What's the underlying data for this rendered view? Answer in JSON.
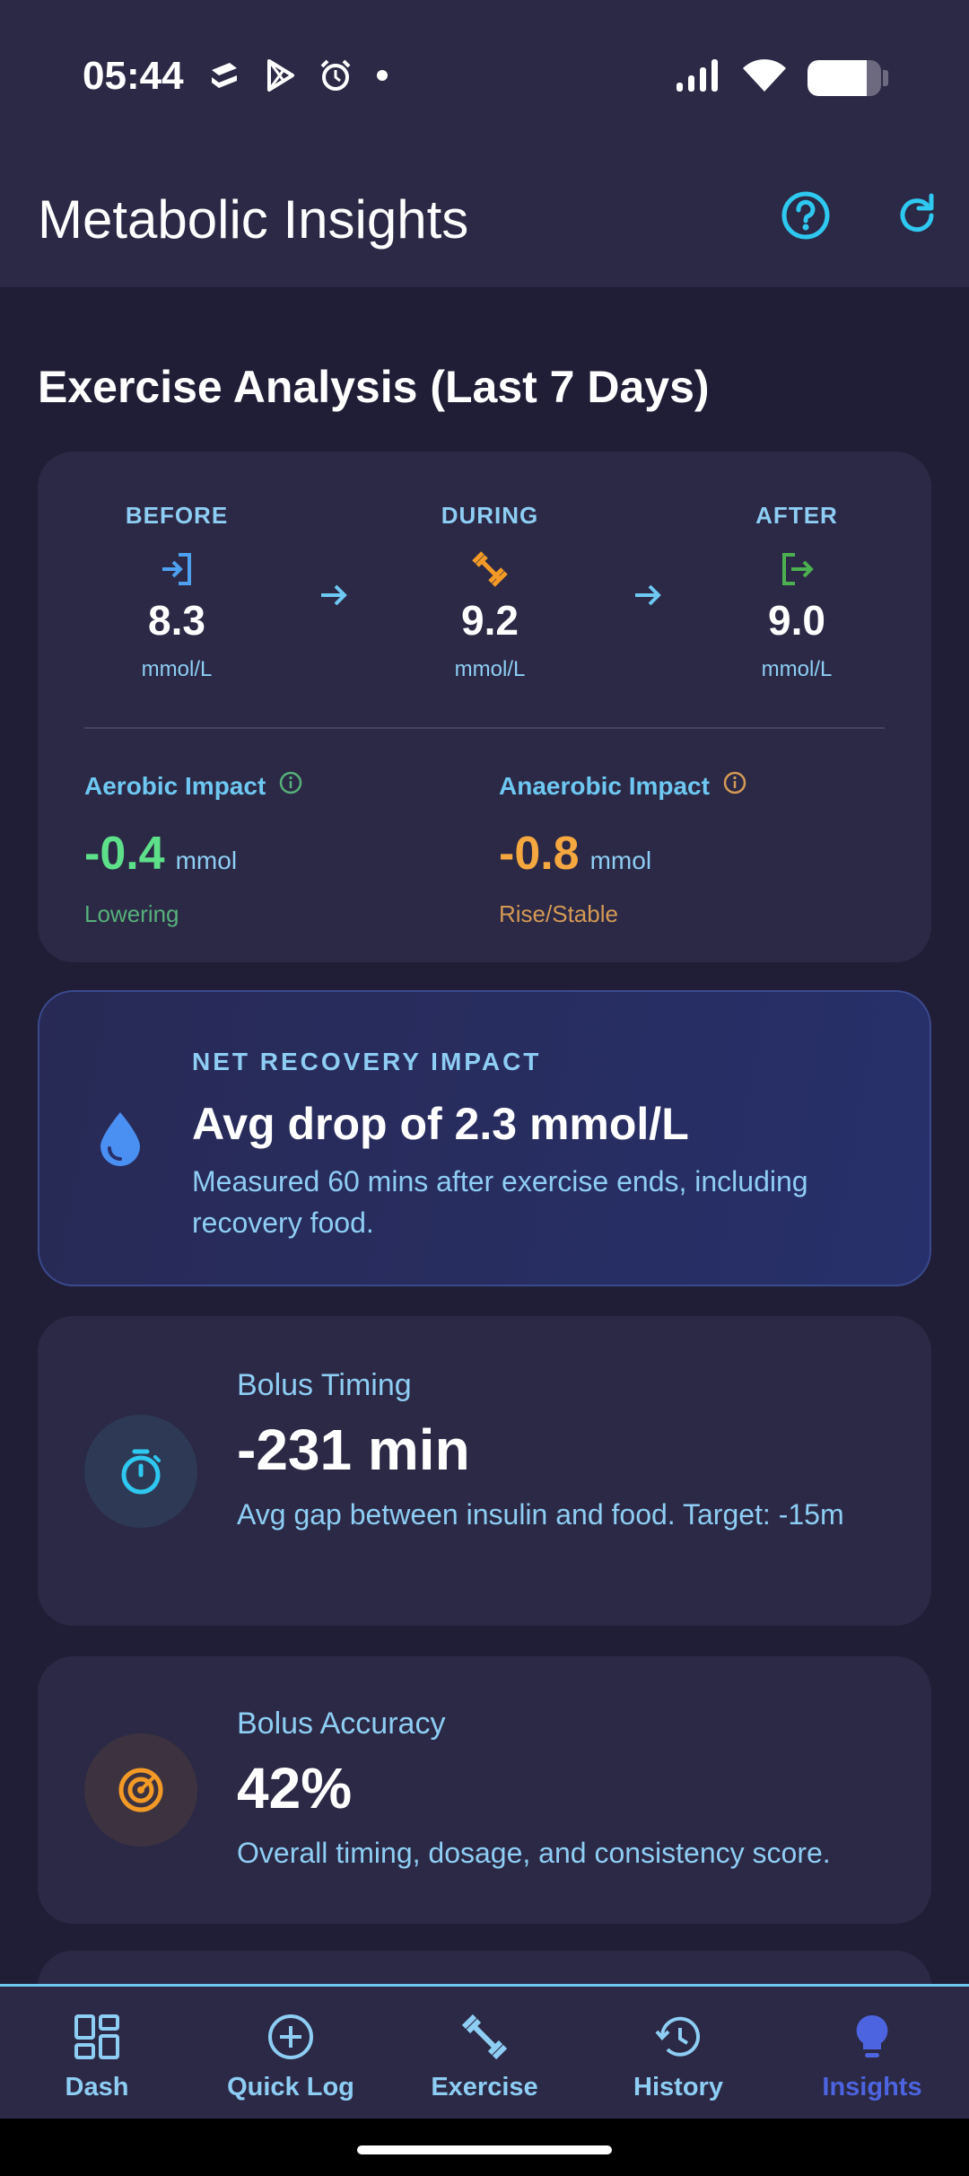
{
  "status_bar": {
    "time": "05:44",
    "icons": [
      "layers-icon",
      "play-store-icon",
      "alarm-icon",
      "dot-icon",
      "signal-icon",
      "wifi-icon",
      "battery-icon"
    ]
  },
  "app_bar": {
    "title": "Metabolic Insights",
    "actions": [
      "help-icon",
      "refresh-icon"
    ]
  },
  "exercise_analysis": {
    "title": "Exercise Analysis (Last 7 Days)",
    "phases": [
      {
        "label": "BEFORE",
        "icon": "login-icon",
        "color": "#4ea0f0",
        "value": "8.3",
        "unit": "mmol/L"
      },
      {
        "label": "DURING",
        "icon": "dumbbell-icon",
        "color": "#f39a26",
        "value": "9.2",
        "unit": "mmol/L"
      },
      {
        "label": "AFTER",
        "icon": "logout-icon",
        "color": "#4caf50",
        "value": "9.0",
        "unit": "mmol/L"
      }
    ],
    "aerobic": {
      "label": "Aerobic Impact",
      "value": "-0.4",
      "unit": "mmol",
      "status": "Lowering",
      "color": "#5ee08a",
      "status_color": "#56b07a"
    },
    "anaerobic": {
      "label": "Anaerobic Impact",
      "value": "-0.8",
      "unit": "mmol",
      "status": "Rise/Stable",
      "color": "#f5a740",
      "status_color": "#d59a55"
    }
  },
  "net_recovery": {
    "title": "NET RECOVERY IMPACT",
    "headline": "Avg drop of 2.3 mmol/L",
    "description": "Measured 60 mins after exercise ends, including recovery food."
  },
  "bolus_timing": {
    "title": "Bolus Timing",
    "value": "-231 min",
    "description": "Avg gap between insulin and food. Target: -15m"
  },
  "bolus_accuracy": {
    "title": "Bolus Accuracy",
    "value": "42%",
    "description": "Overall timing, dosage, and consistency score."
  },
  "bottom_nav": {
    "items": [
      {
        "label": "Dash",
        "icon": "dashboard-icon"
      },
      {
        "label": "Quick Log",
        "icon": "add-circle-icon"
      },
      {
        "label": "Exercise",
        "icon": "dumbbell-icon"
      },
      {
        "label": "History",
        "icon": "history-icon"
      },
      {
        "label": "Insights",
        "icon": "lightbulb-icon"
      }
    ],
    "active": "Insights"
  },
  "colors": {
    "background": "#201e36",
    "card": "#2b2945",
    "accent": "#8ecdf4",
    "active_nav": "#4d64e0"
  }
}
